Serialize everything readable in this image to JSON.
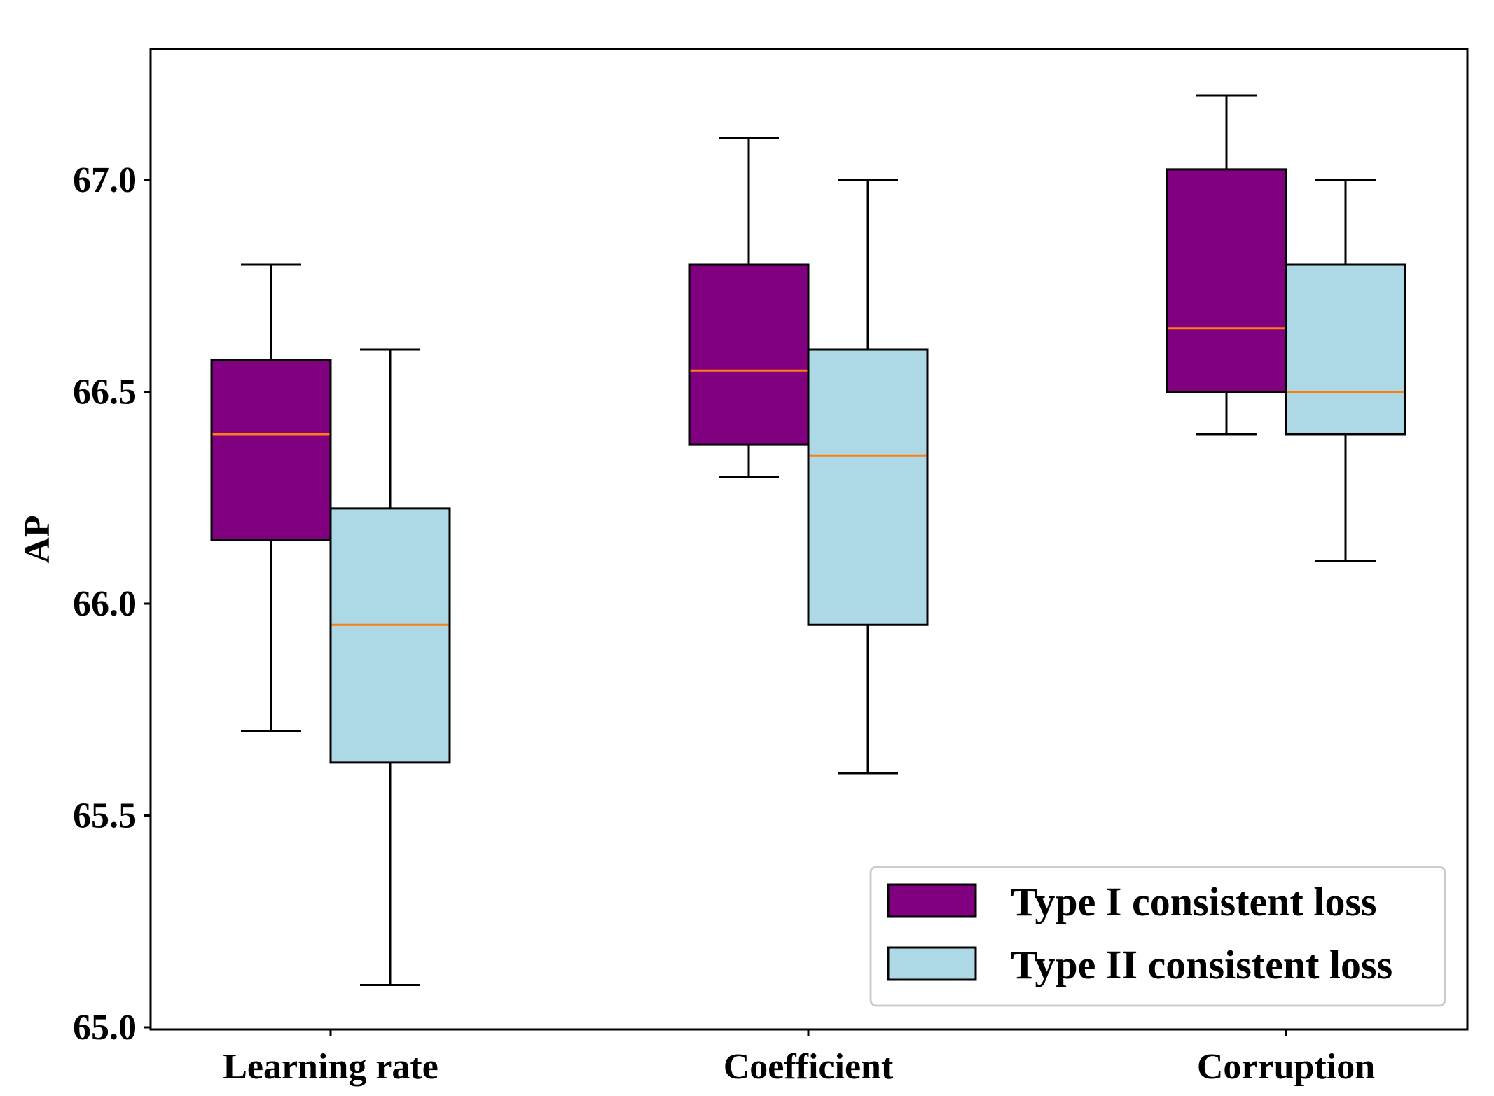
{
  "chart_data": {
    "type": "box",
    "title": "",
    "xlabel": "",
    "ylabel": "AP",
    "ylim": [
      65.0,
      67.3
    ],
    "yticks": [
      65.0,
      65.5,
      66.0,
      66.5,
      67.0
    ],
    "ytick_labels": [
      "65.0",
      "65.5",
      "66.0",
      "66.5",
      "67.0"
    ],
    "categories": [
      "Learning rate",
      "Coefficient",
      "Corruption"
    ],
    "series": [
      {
        "name": "Type I consistent loss",
        "color": "#800080",
        "boxes": [
          {
            "whisker_low": 65.7,
            "q1": 66.15,
            "median": 66.4,
            "q3": 66.575,
            "whisker_high": 66.8
          },
          {
            "whisker_low": 66.3,
            "q1": 66.375,
            "median": 66.55,
            "q3": 66.8,
            "whisker_high": 67.1
          },
          {
            "whisker_low": 66.4,
            "q1": 66.5,
            "median": 66.65,
            "q3": 67.025,
            "whisker_high": 67.2
          }
        ]
      },
      {
        "name": "Type II consistent loss",
        "color": "#add8e6",
        "boxes": [
          {
            "whisker_low": 65.1,
            "q1": 65.625,
            "median": 65.95,
            "q3": 66.225,
            "whisker_high": 66.6
          },
          {
            "whisker_low": 65.6,
            "q1": 65.95,
            "median": 66.35,
            "q3": 66.6,
            "whisker_high": 67.0
          },
          {
            "whisker_low": 66.1,
            "q1": 66.4,
            "median": 66.5,
            "q3": 66.8,
            "whisker_high": 67.0
          }
        ]
      }
    ],
    "median_color": "#ff7f0e",
    "legend": {
      "placement": "lower-right"
    },
    "grid": false
  }
}
